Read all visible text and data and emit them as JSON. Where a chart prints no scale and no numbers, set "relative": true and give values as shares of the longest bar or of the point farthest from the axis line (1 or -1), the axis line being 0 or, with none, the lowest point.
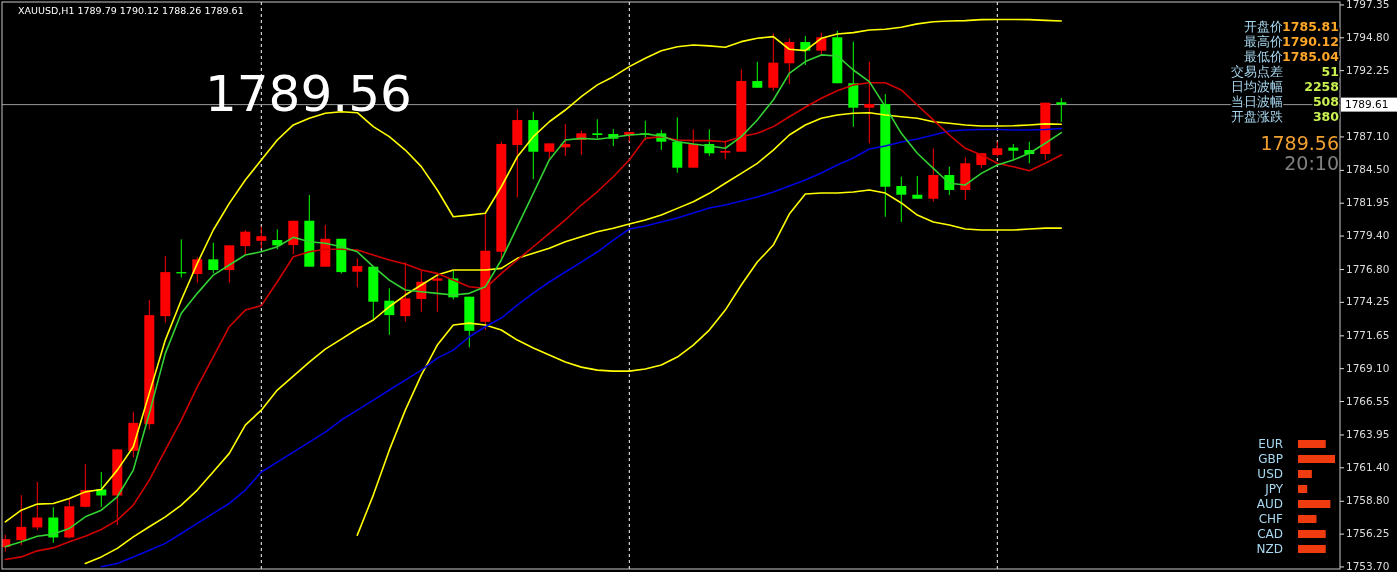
{
  "chart_data": [
    {
      "type": "candlestick",
      "grid": "x",
      "title": "XAUUSD,H1  1789.79 1790.12 1788.26 1789.61",
      "tick_labels": "y",
      "categories": [
        null,
        null,
        null,
        null,
        null,
        null,
        null,
        null,
        null,
        null,
        null,
        null,
        null,
        null,
        null,
        null,
        null,
        null,
        null,
        null,
        null,
        null,
        null,
        null,
        null,
        null,
        null,
        null,
        null,
        null,
        null,
        null,
        null,
        null,
        null,
        null,
        null,
        null,
        null,
        null,
        null,
        null,
        null,
        null,
        null,
        null,
        null,
        null,
        null,
        null,
        null,
        null,
        null,
        null,
        null,
        null,
        null,
        null,
        null,
        null,
        null,
        null,
        null,
        null,
        null,
        null,
        null
      ],
      "ylim": [
        1753.54,
        1797.58
      ],
      "yticks": [
        {
          "value": 1797.35,
          "label": "1797.35"
        },
        {
          "value": 1794.8,
          "label": "1794.80"
        },
        {
          "value": 1792.25,
          "label": "1792.25"
        },
        {
          "value": 1787.1,
          "label": "1787.10"
        },
        {
          "value": 1784.5,
          "label": "1784.50"
        },
        {
          "value": 1781.95,
          "label": "1781.95"
        },
        {
          "value": 1779.4,
          "label": "1779.40"
        },
        {
          "value": 1776.8,
          "label": "1776.80"
        },
        {
          "value": 1774.25,
          "label": "1774.25"
        },
        {
          "value": 1771.65,
          "label": "1771.65"
        },
        {
          "value": 1769.1,
          "label": "1769.10"
        },
        {
          "value": 1766.55,
          "label": "1766.55"
        },
        {
          "value": 1763.95,
          "label": "1763.95"
        },
        {
          "value": 1761.4,
          "label": "1761.40"
        },
        {
          "value": 1758.8,
          "label": "1758.80"
        },
        {
          "value": 1756.25,
          "label": "1756.25"
        },
        {
          "value": 1753.7,
          "label": "1753.70"
        }
      ],
      "ref_lines": [
        {
          "axis": "y",
          "value": 1789.61,
          "label": "1789.61",
          "color": "#9a9a9a"
        }
      ],
      "ohlc": [
        [
          1755.24,
          1756.2,
          1754.9,
          1755.86
        ],
        [
          1755.78,
          1759.28,
          1755.39,
          1756.81
        ],
        [
          1756.77,
          1760.31,
          1756.56,
          1757.54
        ],
        [
          1757.54,
          1758.33,
          1755.57,
          1755.99
        ],
        [
          1755.99,
          1759.02,
          1755.91,
          1758.41
        ],
        [
          1758.37,
          1761.68,
          1758.32,
          1759.67
        ],
        [
          1759.72,
          1761.08,
          1758.37,
          1759.25
        ],
        [
          1759.25,
          1762.83,
          1756.95,
          1762.83
        ],
        [
          1762.72,
          1765.75,
          1762.21,
          1764.89
        ],
        [
          1764.79,
          1774.43,
          1764.38,
          1773.26
        ],
        [
          1773.18,
          1777.85,
          1772.67,
          1776.6
        ],
        [
          1776.6,
          1779.14,
          1776.19,
          1776.5
        ],
        [
          1776.45,
          1777.75,
          1775.77,
          1777.59
        ],
        [
          1777.59,
          1778.88,
          1776.5,
          1776.76
        ],
        [
          1776.76,
          1778.68,
          1775.77,
          1778.68
        ],
        [
          1778.62,
          1779.87,
          1777.92,
          1779.74
        ],
        [
          1779.03,
          1780.12,
          1778.45,
          1779.39
        ],
        [
          1779.09,
          1779.92,
          1778.37,
          1778.68
        ],
        [
          1778.7,
          1780.59,
          1778.0,
          1780.59
        ],
        [
          1780.59,
          1782.59,
          1777.02,
          1777.02
        ],
        [
          1777.02,
          1780.26,
          1777.02,
          1779.19
        ],
        [
          1779.19,
          1779.19,
          1776.5,
          1776.6
        ],
        [
          1776.63,
          1777.67,
          1775.42,
          1777.07
        ],
        [
          1777.02,
          1777.02,
          1772.82,
          1774.3
        ],
        [
          1774.38,
          1775.34,
          1771.73,
          1773.26
        ],
        [
          1773.18,
          1777.38,
          1772.74,
          1774.56
        ],
        [
          1774.51,
          1776.71,
          1773.52,
          1775.85
        ],
        [
          1775.93,
          1776.45,
          1773.52,
          1776.11
        ],
        [
          1776.11,
          1776.71,
          1774.48,
          1774.64
        ],
        [
          1774.69,
          1774.69,
          1770.75,
          1772.04
        ],
        [
          1772.74,
          1781.16,
          1772.1,
          1778.26
        ],
        [
          1778.18,
          1786.73,
          1777.54,
          1786.55
        ],
        [
          1786.47,
          1789.25,
          1782.41,
          1788.41
        ],
        [
          1788.41,
          1789.06,
          1783.81,
          1785.95
        ],
        [
          1785.95,
          1786.6,
          1785.36,
          1786.6
        ],
        [
          1786.29,
          1788.1,
          1785.62,
          1786.55
        ],
        [
          1786.86,
          1787.58,
          1785.7,
          1787.38
        ],
        [
          1787.38,
          1788.47,
          1786.99,
          1787.25
        ],
        [
          1787.33,
          1787.72,
          1786.39,
          1786.96
        ],
        [
          1787.23,
          1787.48,
          1786.73,
          1787.48
        ],
        [
          1787.38,
          1788.36,
          1786.86,
          1787.27
        ],
        [
          1787.38,
          1787.64,
          1786.08,
          1786.73
        ],
        [
          1786.73,
          1788.62,
          1784.32,
          1784.71
        ],
        [
          1784.71,
          1787.69,
          1784.71,
          1786.55
        ],
        [
          1786.55,
          1787.69,
          1785.62,
          1785.83
        ],
        [
          1785.88,
          1786.81,
          1785.36,
          1786.01
        ],
        [
          1785.95,
          1792.35,
          1785.95,
          1791.44
        ],
        [
          1791.44,
          1792.94,
          1790.92,
          1790.92
        ],
        [
          1790.92,
          1795.15,
          1790.69,
          1792.87
        ],
        [
          1792.82,
          1794.76,
          1791.21,
          1794.47
        ],
        [
          1794.47,
          1794.94,
          1792.69,
          1793.8
        ],
        [
          1793.8,
          1795.2,
          1793.39,
          1794.84
        ],
        [
          1794.84,
          1795.35,
          1791.27,
          1791.27
        ],
        [
          1791.27,
          1794.5,
          1787.89,
          1789.37
        ],
        [
          1789.37,
          1792.94,
          1786.6,
          1789.66
        ],
        [
          1789.66,
          1790.43,
          1780.9,
          1783.23
        ],
        [
          1783.29,
          1784.01,
          1780.49,
          1782.61
        ],
        [
          1782.61,
          1784.06,
          1782.3,
          1782.3
        ],
        [
          1782.3,
          1786.21,
          1782.07,
          1784.14
        ],
        [
          1784.14,
          1784.79,
          1782.59,
          1782.98
        ],
        [
          1782.98,
          1785.52,
          1782.2,
          1785.05
        ],
        [
          1784.92,
          1785.83,
          1784.66,
          1785.83
        ],
        [
          1785.7,
          1786.73,
          1785.56,
          1786.22
        ],
        [
          1786.27,
          1786.55,
          1785.31,
          1786.03
        ],
        [
          1786.08,
          1786.73,
          1785.05,
          1785.77
        ],
        [
          1785.77,
          1789.76,
          1785.31,
          1789.76
        ],
        [
          1789.79,
          1790.12,
          1788.26,
          1789.61
        ]
      ],
      "colors": [
        "#ff0000",
        "#ff0000",
        "#ff0000",
        "#00ff00",
        "#ff0000",
        "#ff0000",
        "#00ff00",
        "#ff0000",
        "#ff0000",
        "#ff0000",
        "#ff0000",
        "#00ff00",
        "#ff0000",
        "#00ff00",
        "#ff0000",
        "#ff0000",
        "#ff0000",
        "#00ff00",
        "#ff0000",
        "#00ff00",
        "#ff0000",
        "#00ff00",
        "#ff0000",
        "#00ff00",
        "#00ff00",
        "#ff0000",
        "#ff0000",
        "#ff0000",
        "#00ff00",
        "#00ff00",
        "#ff0000",
        "#ff0000",
        "#ff0000",
        "#00ff00",
        "#ff0000",
        "#ff0000",
        "#ff0000",
        "#00ff00",
        "#00ff00",
        "#ff0000",
        "#00ff00",
        "#00ff00",
        "#00ff00",
        "#ff0000",
        "#00ff00",
        "#ff0000",
        "#ff0000",
        "#00ff00",
        "#ff0000",
        "#ff0000",
        "#00ff00",
        "#ff0000",
        "#00ff00",
        "#00ff00",
        "#ff0000",
        "#00ff00",
        "#00ff00",
        "#00ff00",
        "#ff0000",
        "#00ff00",
        "#ff0000",
        "#ff0000",
        "#ff0000",
        "#00ff00",
        "#00ff00",
        "#ff0000",
        "#00ff00"
      ],
      "series": [
        {
          "type": "line",
          "color": "#ffff00",
          "values": [
            1757.2,
            1758.11,
            1758.58,
            1758.63,
            1759.02,
            1759.53,
            1759.72,
            1761.22,
            1763.03,
            1767.18,
            1771.32,
            1774.43,
            1777.28,
            1779.87,
            1781.94,
            1783.75,
            1785.31,
            1786.86,
            1788.03,
            1788.55,
            1788.94,
            1789.06,
            1788.98,
            1787.9,
            1787.12,
            1786.08,
            1784.79,
            1782.98,
            1780.9,
            1781.03,
            1781.17,
            1783.23,
            1785.56,
            1787.12,
            1788.28,
            1789.19,
            1790.23,
            1791.14,
            1791.78,
            1792.56,
            1793.21,
            1793.8,
            1794.11,
            1794.24,
            1794.17,
            1794.06,
            1794.5,
            1794.76,
            1794.89,
            1793.91,
            1793.8,
            1794.76,
            1795.1,
            1795.2,
            1795.41,
            1795.46,
            1795.62,
            1795.88,
            1796.05,
            1796.11,
            1796.13,
            1796.21,
            1796.22,
            1796.22,
            1796.21,
            1796.15,
            1796.11
          ]
        },
        {
          "type": "line",
          "color": "#ffff00",
          "values": [
            null,
            null,
            null,
            null,
            null,
            1753.97,
            1754.48,
            1755.14,
            1756.04,
            1756.82,
            1757.59,
            1758.5,
            1759.67,
            1761.09,
            1762.52,
            1764.72,
            1765.88,
            1767.44,
            1768.52,
            1769.61,
            1770.62,
            1771.4,
            1772.18,
            1772.88,
            1773.91,
            1774.82,
            1775.6,
            1776.37,
            1776.76,
            1776.76,
            1776.76,
            1776.89,
            1777.67,
            1778.06,
            1778.45,
            1778.96,
            1779.35,
            1779.74,
            1780.0,
            1780.34,
            1780.65,
            1781.03,
            1781.55,
            1782.07,
            1782.72,
            1783.5,
            1784.27,
            1785.05,
            1786.08,
            1787.25,
            1788.03,
            1788.55,
            1788.8,
            1788.94,
            1788.98,
            1788.8,
            1788.67,
            1788.55,
            1788.28,
            1788.16,
            1788.03,
            1787.95,
            1787.95,
            1787.97,
            1788.03,
            1788.11,
            1788.08
          ]
        },
        {
          "type": "line",
          "color": "#ffff00",
          "values": [
            null,
            null,
            null,
            null,
            null,
            null,
            null,
            null,
            null,
            null,
            null,
            null,
            null,
            null,
            null,
            null,
            null,
            null,
            null,
            null,
            null,
            null,
            1756.17,
            1759.28,
            1762.77,
            1765.88,
            1768.6,
            1770.93,
            1772.49,
            1772.64,
            1772.49,
            1772.1,
            1771.32,
            1770.7,
            1770.16,
            1769.61,
            1769.22,
            1768.99,
            1768.91,
            1768.91,
            1769.07,
            1769.38,
            1770.0,
            1770.93,
            1772.1,
            1773.65,
            1775.6,
            1777.38,
            1778.7,
            1781.11,
            1782.67,
            1782.74,
            1782.74,
            1782.82,
            1782.98,
            1782.74,
            1781.97,
            1781.03,
            1780.49,
            1780.26,
            1779.95,
            1779.87,
            1779.87,
            1779.87,
            1779.95,
            1780.02,
            1780.02
          ]
        },
        {
          "type": "line",
          "color": "#0000e0",
          "values": [
            null,
            null,
            null,
            null,
            null,
            null,
            1753.71,
            1753.97,
            1754.48,
            1755.0,
            1755.53,
            1756.3,
            1757.08,
            1757.86,
            1758.63,
            1759.67,
            1761.07,
            1761.84,
            1762.62,
            1763.4,
            1764.17,
            1765.11,
            1765.88,
            1766.66,
            1767.44,
            1768.21,
            1768.99,
            1769.92,
            1770.54,
            1771.58,
            1772.36,
            1773.03,
            1774.04,
            1774.97,
            1775.83,
            1776.61,
            1777.38,
            1778.16,
            1779.09,
            1779.95,
            1780.18,
            1780.49,
            1780.8,
            1781.19,
            1781.58,
            1781.81,
            1782.12,
            1782.43,
            1782.82,
            1783.29,
            1783.75,
            1784.3,
            1784.92,
            1785.46,
            1786.16,
            1786.4,
            1786.71,
            1786.94,
            1787.25,
            1787.56,
            1787.64,
            1787.68,
            1787.68,
            1787.64,
            1787.64,
            1787.68,
            1787.76
          ]
        },
        {
          "type": "line",
          "color": "#d00000",
          "values": [
            1754.28,
            1754.48,
            1754.95,
            1755.18,
            1755.65,
            1756.09,
            1756.61,
            1757.34,
            1758.5,
            1760.44,
            1762.77,
            1765.11,
            1767.69,
            1770.02,
            1772.36,
            1773.65,
            1774.0,
            1775.85,
            1777.79,
            1778.18,
            1778.37,
            1778.37,
            1778.31,
            1777.93,
            1777.54,
            1777.23,
            1776.76,
            1776.5,
            1775.98,
            1775.46,
            1775.34,
            1776.5,
            1777.54,
            1778.57,
            1779.61,
            1780.65,
            1781.81,
            1782.84,
            1784.01,
            1785.31,
            1786.99,
            1787.12,
            1786.86,
            1786.81,
            1786.81,
            1786.73,
            1787.12,
            1787.38,
            1787.9,
            1788.67,
            1789.4,
            1790.1,
            1790.69,
            1791.14,
            1791.31,
            1791.31,
            1790.75,
            1789.58,
            1788.42,
            1787.25,
            1786.22,
            1785.7,
            1785.05,
            1784.79,
            1784.48,
            1785.05,
            1785.7
          ]
        },
        {
          "type": "line",
          "color": "#32d232",
          "values": [
            1755.26,
            1755.65,
            1756.09,
            1756.25,
            1756.69,
            1757.59,
            1758.11,
            1759.15,
            1761.22,
            1765.63,
            1770.29,
            1773.4,
            1774.95,
            1776.37,
            1777.15,
            1777.93,
            1778.18,
            1778.57,
            1779.3,
            1778.96,
            1778.84,
            1778.57,
            1778.18,
            1777.02,
            1775.98,
            1775.21,
            1775.07,
            1774.95,
            1774.82,
            1774.95,
            1775.46,
            1777.54,
            1780.13,
            1782.72,
            1785.31,
            1786.86,
            1786.99,
            1786.92,
            1787.07,
            1787.25,
            1787.33,
            1787.17,
            1786.73,
            1786.55,
            1786.4,
            1786.22,
            1787.12,
            1788.42,
            1789.97,
            1792.04,
            1792.95,
            1793.47,
            1793.39,
            1792.3,
            1791.39,
            1789.45,
            1787.38,
            1785.83,
            1784.66,
            1783.5,
            1783.37,
            1784.27,
            1784.92,
            1785.31,
            1785.83,
            1786.61,
            1787.43
          ]
        }
      ],
      "annotations": [
        "1789.56",
        "开盘价",
        "1785.81",
        "最高价",
        "1790.12",
        "最低价",
        "1785.04",
        "交易点差",
        "51",
        "日均波幅",
        "2258",
        "当日波幅",
        "508",
        "开盘涨跌",
        "380",
        "1789.56",
        "20:10"
      ]
    },
    {
      "type": "bar",
      "orientation": "horizontal",
      "relative": true,
      "categories": [
        "EUR",
        "GBP",
        "USD",
        "JPY",
        "AUD",
        "CHF",
        "CAD",
        "NZD"
      ],
      "values": [
        0.75,
        1,
        0.375,
        0.25,
        0.875,
        0.5,
        0.75,
        0.75
      ],
      "color": "#f03a10"
    }
  ]
}
